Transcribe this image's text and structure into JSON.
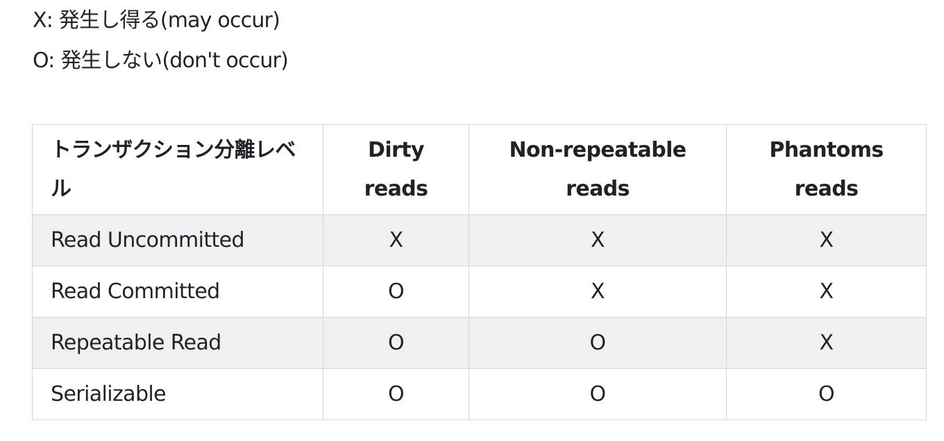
{
  "legend": {
    "may_occur": "X: 発生し得る(may occur)",
    "does_not_occur": "O: 発生しない(don't occur)"
  },
  "table": {
    "headers": {
      "level": "トランザクション分離レベル",
      "dirty_reads": "Dirty reads",
      "non_repeatable_reads": "Non-repeatable reads",
      "phantoms_reads": "Phantoms reads"
    },
    "rows": [
      {
        "level": "Read Uncommitted",
        "dirty": "X",
        "non_repeatable": "X",
        "phantoms": "X"
      },
      {
        "level": "Read Committed",
        "dirty": "O",
        "non_repeatable": "X",
        "phantoms": "X"
      },
      {
        "level": "Repeatable Read",
        "dirty": "O",
        "non_repeatable": "O",
        "phantoms": "X"
      },
      {
        "level": "Serializable",
        "dirty": "O",
        "non_repeatable": "O",
        "phantoms": "O"
      }
    ]
  },
  "colors": {
    "text": "#1f2328",
    "border": "#d0d7de",
    "striped_row": "#eef0f1",
    "background": "#ffffff"
  }
}
